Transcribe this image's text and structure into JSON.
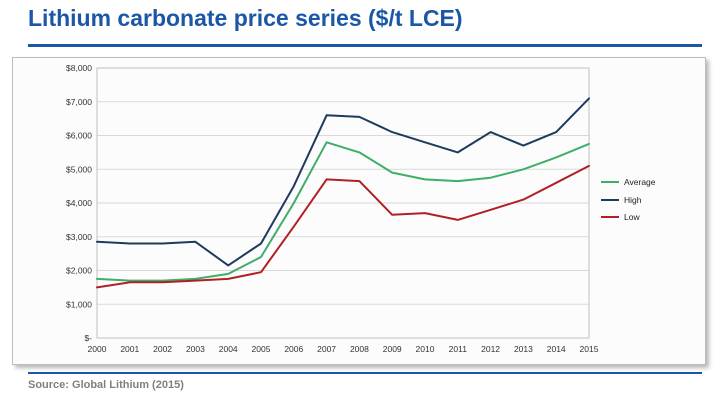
{
  "title": "Lithium carbonate price series ($/t LCE)",
  "source": "Source: Global Lithium (2015)",
  "colors": {
    "title_blue": "#1b57a6",
    "rule_blue": "#1b57a6",
    "source_gray": "#808080",
    "gridline": "#d9d9d9",
    "plot_border": "#bfbfbf"
  },
  "chart_data": {
    "type": "line",
    "title": "Lithium carbonate price series ($/t LCE)",
    "xlabel": "",
    "ylabel": "",
    "x": [
      2000,
      2001,
      2002,
      2003,
      2004,
      2005,
      2006,
      2007,
      2008,
      2009,
      2010,
      2011,
      2012,
      2013,
      2014,
      2015
    ],
    "series": [
      {
        "name": "Average",
        "color": "#3fae68",
        "values": [
          1750,
          1700,
          1700,
          1750,
          1900,
          2400,
          4000,
          5800,
          5500,
          4900,
          4700,
          4650,
          4750,
          5000,
          5350,
          5750
        ]
      },
      {
        "name": "High",
        "color": "#1f3a5f",
        "values": [
          2850,
          2800,
          2800,
          2850,
          2150,
          2800,
          4500,
          6600,
          6550,
          6100,
          5800,
          5500,
          6100,
          5700,
          6100,
          7100
        ]
      },
      {
        "name": "Low",
        "color": "#b02024",
        "values": [
          1500,
          1650,
          1650,
          1700,
          1750,
          1950,
          3300,
          4700,
          4650,
          3650,
          3700,
          3500,
          3800,
          4100,
          4600,
          5100
        ]
      }
    ],
    "ylim": [
      0,
      8000
    ],
    "y_tick_labels": [
      "$-",
      "$1,000",
      "$2,000",
      "$3,000",
      "$4,000",
      "$5,000",
      "$6,000",
      "$7,000",
      "$8,000"
    ],
    "grid": true,
    "legend_position": "right"
  }
}
